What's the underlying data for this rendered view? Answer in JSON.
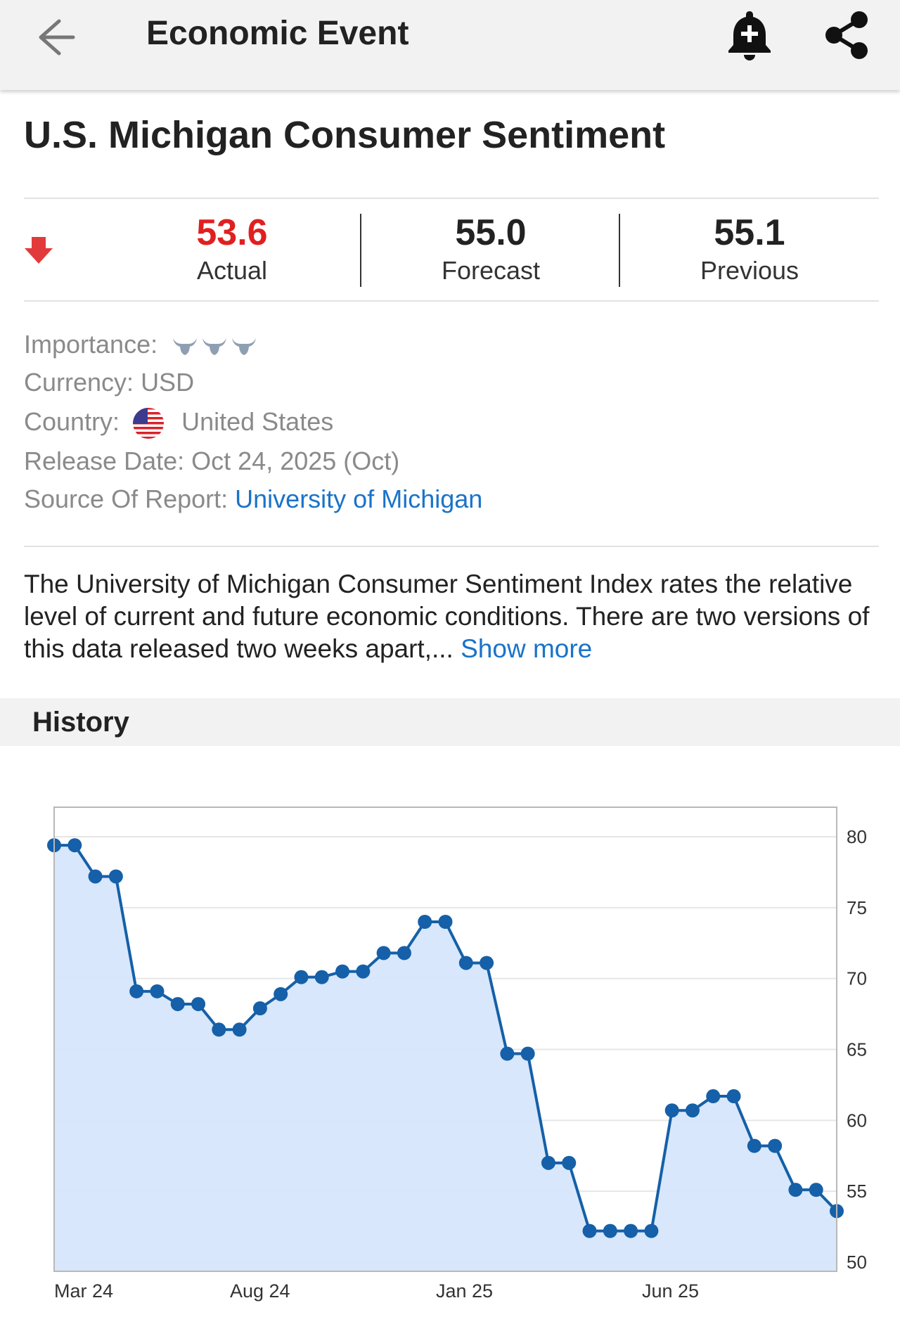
{
  "header": {
    "title": "Economic Event",
    "back_icon": "arrow-left-icon",
    "alert_icon": "bell-plus-icon",
    "share_icon": "share-icon"
  },
  "event": {
    "title": "U.S. Michigan Consumer Sentiment"
  },
  "stats": {
    "trend": "down",
    "actual_value": "53.6",
    "actual_label": "Actual",
    "forecast_value": "55.0",
    "forecast_label": "Forecast",
    "previous_value": "55.1",
    "previous_label": "Previous"
  },
  "details": {
    "importance_label": "Importance:",
    "importance_level": 3,
    "currency_label": "Currency:",
    "currency_value": "USD",
    "country_label": "Country:",
    "country_value": "United States",
    "release_label": "Release Date:",
    "release_value": "Oct 24, 2025 (Oct)",
    "source_label": "Source Of Report:",
    "source_value": "University of Michigan"
  },
  "description": {
    "text": "The University of Michigan Consumer Sentiment Index rates the relative level of current and future economic conditions. There are two versions of this data released two weeks apart,...",
    "show_more": "Show more"
  },
  "history": {
    "title": "History"
  },
  "colors": {
    "accent": "#1a73c9",
    "negative": "#e02020",
    "line": "#1560a8",
    "area": "#d6e6fb"
  },
  "chart_data": {
    "type": "area",
    "x_tick_labels": [
      "Mar 24",
      "Aug 24",
      "Jan 25",
      "Jun 25"
    ],
    "y_tick_labels": [
      "80",
      "75",
      "70",
      "65",
      "60",
      "55",
      "50"
    ],
    "ylim": [
      50,
      80
    ],
    "y_axis_position": "right",
    "grid": true,
    "series": [
      {
        "values": [
          79.4,
          79.4,
          77.2,
          77.2,
          69.1,
          69.1,
          68.2,
          68.2,
          66.4,
          66.4,
          67.9,
          68.9,
          70.1,
          70.1,
          70.5,
          70.5,
          71.8,
          71.8,
          74.0,
          74.0,
          71.1,
          71.1,
          64.7,
          64.7,
          57.0,
          57.0,
          52.2,
          52.2,
          52.2,
          52.2,
          60.7,
          60.7,
          61.7,
          61.7,
          58.2,
          58.2,
          55.1,
          55.1,
          53.6
        ]
      }
    ]
  }
}
